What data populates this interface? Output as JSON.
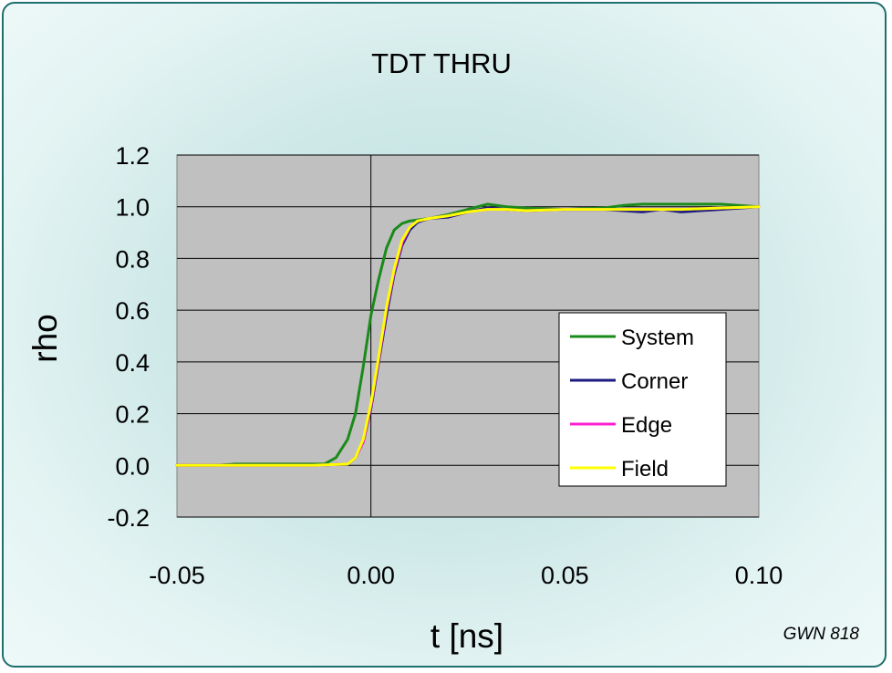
{
  "chart_data": {
    "type": "line",
    "title": "TDT THRU",
    "xlabel": "t [ns]",
    "ylabel": "rho",
    "xlim": [
      -0.05,
      0.1
    ],
    "ylim": [
      -0.2,
      1.2
    ],
    "x_ticks": [
      "-0.05",
      "0.00",
      "0.05",
      "0.10"
    ],
    "y_ticks": [
      "-0.2",
      "0.0",
      "0.2",
      "0.4",
      "0.6",
      "0.8",
      "1.0",
      "1.2"
    ],
    "x_tick_values": [
      -0.05,
      0.0,
      0.05,
      0.1
    ],
    "y_tick_values": [
      -0.2,
      0.0,
      0.2,
      0.4,
      0.6,
      0.8,
      1.0,
      1.2
    ],
    "grid": "horizontal",
    "plot_background": "#c0c0c0",
    "legend_position": "right",
    "series": [
      {
        "name": "System",
        "color": "#1a8a1a",
        "x": [
          -0.05,
          -0.04,
          -0.035,
          -0.02,
          -0.012,
          -0.009,
          -0.006,
          -0.004,
          -0.002,
          0.0,
          0.002,
          0.004,
          0.006,
          0.008,
          0.01,
          0.015,
          0.02,
          0.025,
          0.03,
          0.035,
          0.04,
          0.05,
          0.06,
          0.065,
          0.07,
          0.08,
          0.09,
          0.1
        ],
        "y": [
          0.0,
          0.0,
          0.005,
          0.005,
          0.005,
          0.03,
          0.1,
          0.2,
          0.38,
          0.58,
          0.72,
          0.84,
          0.91,
          0.935,
          0.945,
          0.955,
          0.97,
          0.99,
          1.01,
          1.0,
          0.995,
          0.99,
          0.995,
          1.005,
          1.01,
          1.01,
          1.01,
          1.0
        ]
      },
      {
        "name": "Corner",
        "color": "#1a1a80",
        "x": [
          -0.05,
          -0.03,
          -0.015,
          -0.006,
          -0.004,
          -0.002,
          0.0,
          0.002,
          0.004,
          0.006,
          0.008,
          0.01,
          0.012,
          0.015,
          0.02,
          0.025,
          0.03,
          0.035,
          0.04,
          0.05,
          0.06,
          0.065,
          0.07,
          0.075,
          0.08,
          0.09,
          0.1
        ],
        "y": [
          0.0,
          0.0,
          0.0,
          0.005,
          0.03,
          0.09,
          0.22,
          0.4,
          0.58,
          0.74,
          0.85,
          0.91,
          0.94,
          0.955,
          0.96,
          0.98,
          0.995,
          0.99,
          0.985,
          0.99,
          0.99,
          0.985,
          0.98,
          0.99,
          0.98,
          0.99,
          1.0
        ]
      },
      {
        "name": "Edge",
        "color": "#ff20d0",
        "x": [
          -0.05,
          -0.03,
          -0.015,
          -0.006,
          -0.004,
          -0.002,
          0.0,
          0.002,
          0.004,
          0.006,
          0.008,
          0.01,
          0.012,
          0.015,
          0.02,
          0.025,
          0.03,
          0.035,
          0.04,
          0.05,
          0.06,
          0.07,
          0.08,
          0.09,
          0.1
        ],
        "y": [
          0.0,
          0.0,
          0.0,
          0.005,
          0.03,
          0.09,
          0.23,
          0.41,
          0.6,
          0.75,
          0.86,
          0.92,
          0.945,
          0.955,
          0.965,
          0.98,
          0.99,
          0.99,
          0.985,
          0.99,
          0.99,
          0.99,
          0.99,
          0.995,
          1.0
        ]
      },
      {
        "name": "Field",
        "color": "#ffff00",
        "x": [
          -0.05,
          -0.03,
          -0.015,
          -0.006,
          -0.004,
          -0.002,
          0.0,
          0.002,
          0.004,
          0.006,
          0.008,
          0.01,
          0.012,
          0.015,
          0.02,
          0.025,
          0.03,
          0.035,
          0.04,
          0.05,
          0.06,
          0.07,
          0.08,
          0.09,
          0.1
        ],
        "y": [
          0.0,
          0.0,
          0.0,
          0.005,
          0.03,
          0.1,
          0.24,
          0.42,
          0.61,
          0.76,
          0.87,
          0.92,
          0.945,
          0.955,
          0.965,
          0.98,
          0.99,
          0.99,
          0.985,
          0.99,
          0.99,
          0.99,
          0.99,
          0.995,
          1.0
        ]
      }
    ]
  },
  "footer": {
    "watermark": "GWN 818"
  }
}
